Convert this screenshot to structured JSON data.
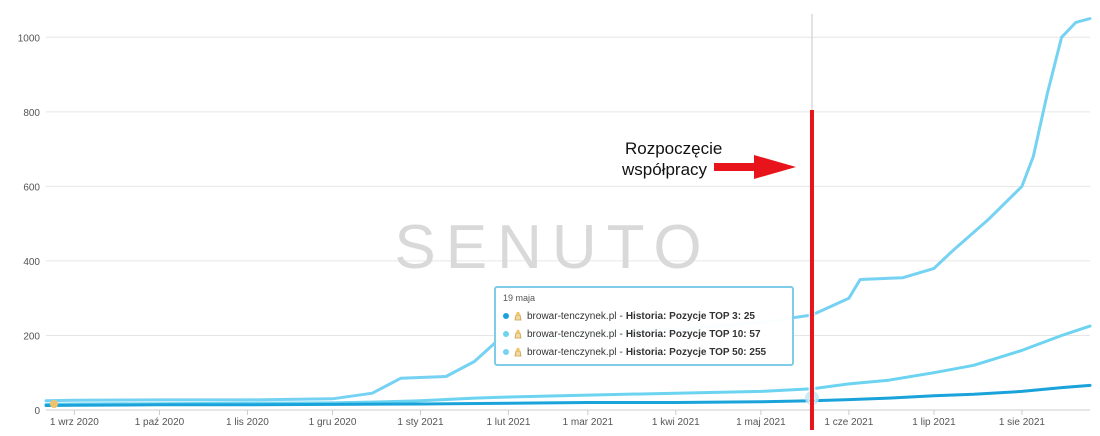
{
  "chart_data": {
    "type": "line",
    "title": "",
    "xlabel": "",
    "ylabel": "",
    "ylim": [
      0,
      1100
    ],
    "y_ticks": [
      0,
      200,
      400,
      600,
      800,
      1000
    ],
    "x_range": [
      "2020-08-22",
      "2021-08-25"
    ],
    "x_tick_labels": [
      "1 wrz 2020",
      "1 paź 2020",
      "1 lis 2020",
      "1 gru 2020",
      "1 sty 2021",
      "1 lut 2021",
      "1 mar 2021",
      "1 kwi 2021",
      "1 maj 2021",
      "1 cze 2021",
      "1 lip 2021",
      "1 sie 2021"
    ],
    "x_tick_dates": [
      "2020-09-01",
      "2020-10-01",
      "2020-11-01",
      "2020-12-01",
      "2021-01-01",
      "2021-02-01",
      "2021-03-01",
      "2021-04-01",
      "2021-05-01",
      "2021-06-01",
      "2021-07-01",
      "2021-08-01"
    ],
    "grid": true,
    "legend": "none",
    "series": [
      {
        "color": "#1aa3da",
        "x": [
          "2020-08-22",
          "2020-09-01",
          "2020-10-01",
          "2020-11-01",
          "2020-12-01",
          "2021-01-01",
          "2021-02-01",
          "2021-03-01",
          "2021-04-01",
          "2021-05-01",
          "2021-05-19",
          "2021-06-01",
          "2021-06-15",
          "2021-07-01",
          "2021-07-15",
          "2021-08-01",
          "2021-08-15",
          "2021-08-25"
        ],
        "values": [
          12,
          13,
          14,
          14,
          15,
          16,
          18,
          20,
          20,
          22,
          25,
          28,
          32,
          38,
          42,
          50,
          60,
          66
        ]
      },
      {
        "color": "#6cd3f0",
        "x": [
          "2020-08-22",
          "2020-09-01",
          "2020-10-01",
          "2020-11-01",
          "2020-12-01",
          "2020-12-20",
          "2021-01-01",
          "2021-01-20",
          "2021-02-01",
          "2021-03-01",
          "2021-04-01",
          "2021-05-01",
          "2021-05-19",
          "2021-06-01",
          "2021-06-15",
          "2021-07-01",
          "2021-07-15",
          "2021-08-01",
          "2021-08-15",
          "2021-08-25"
        ],
        "values": [
          15,
          16,
          17,
          18,
          19,
          22,
          25,
          32,
          35,
          40,
          45,
          50,
          57,
          70,
          80,
          100,
          120,
          160,
          200,
          225
        ]
      },
      {
        "color": "#76d2f2",
        "x": [
          "2020-08-22",
          "2020-09-01",
          "2020-10-01",
          "2020-11-01",
          "2020-12-01",
          "2020-12-15",
          "2020-12-25",
          "2021-01-10",
          "2021-01-20",
          "2021-01-28",
          "2021-02-05",
          "2021-02-20",
          "2021-03-01",
          "2021-03-15",
          "2021-04-01",
          "2021-04-15",
          "2021-05-01",
          "2021-05-10",
          "2021-05-19",
          "2021-06-01",
          "2021-06-05",
          "2021-06-20",
          "2021-07-01",
          "2021-07-08",
          "2021-07-20",
          "2021-08-01",
          "2021-08-05",
          "2021-08-10",
          "2021-08-15",
          "2021-08-20",
          "2021-08-25"
        ],
        "values": [
          25,
          26,
          27,
          27,
          30,
          45,
          85,
          90,
          130,
          185,
          190,
          195,
          200,
          210,
          215,
          225,
          235,
          245,
          255,
          300,
          350,
          355,
          380,
          430,
          510,
          600,
          680,
          850,
          1000,
          1040,
          1050
        ]
      }
    ],
    "annotations": {
      "label_lines": [
        "Rozpoczęcie",
        "współpracy"
      ],
      "marker_date": "2021-05-19"
    },
    "tooltip": {
      "date": "19 maja",
      "rows": [
        {
          "site": "browar-tenczynek.pl",
          "sep": "-",
          "metric": "Historia: Pozycje TOP 3: 25",
          "color": "#1aa3da"
        },
        {
          "site": "browar-tenczynek.pl",
          "sep": "-",
          "metric": "Historia: Pozycje TOP 10: 57",
          "color": "#6cd3f0"
        },
        {
          "site": "browar-tenczynek.pl",
          "sep": "-",
          "metric": "Historia: Pozycje TOP 50: 255",
          "color": "#76d2f2"
        }
      ]
    },
    "watermark": "SENUTO",
    "colors": {
      "grid": "#e6e6e6",
      "marker": "#e8141b",
      "arrow": "#e8141b",
      "crosshair": "#c8c8c8",
      "tooltip_border": "#7fcbe8"
    }
  }
}
